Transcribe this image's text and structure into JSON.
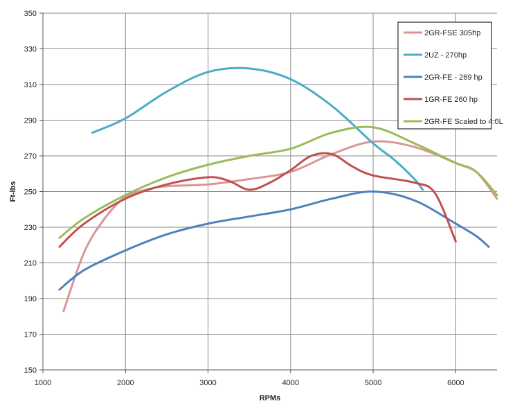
{
  "chart_data": {
    "type": "line",
    "title": "",
    "xlabel": "RPMs",
    "ylabel": "Ft-lbs",
    "xlim": [
      1000,
      6500
    ],
    "ylim": [
      150,
      350
    ],
    "xticks": [
      1000,
      2000,
      3000,
      4000,
      5000,
      6000
    ],
    "yticks": [
      150,
      170,
      190,
      210,
      230,
      250,
      270,
      290,
      310,
      330,
      350
    ],
    "grid": true,
    "legend_position": "top-right",
    "series": [
      {
        "name": "2GR-FSE 305hp",
        "color": "#d99694",
        "points": [
          [
            1250,
            183
          ],
          [
            1500,
            216
          ],
          [
            1750,
            235
          ],
          [
            2000,
            247
          ],
          [
            2250,
            251
          ],
          [
            2500,
            253
          ],
          [
            3000,
            254
          ],
          [
            3500,
            257
          ],
          [
            4000,
            261
          ],
          [
            4500,
            271
          ],
          [
            5000,
            278
          ],
          [
            5500,
            275
          ],
          [
            6000,
            266
          ],
          [
            6250,
            261
          ],
          [
            6500,
            246
          ]
        ]
      },
      {
        "name": "2UZ - 270hp",
        "color": "#4bacc6",
        "points": [
          [
            1600,
            283
          ],
          [
            2000,
            291
          ],
          [
            2500,
            306
          ],
          [
            3000,
            317
          ],
          [
            3500,
            319
          ],
          [
            4000,
            313
          ],
          [
            4500,
            298
          ],
          [
            5000,
            277
          ],
          [
            5250,
            268
          ],
          [
            5500,
            257
          ],
          [
            5600,
            251
          ]
        ]
      },
      {
        "name": "2GR-FE - 269 hp",
        "color": "#4f81bd",
        "points": [
          [
            1200,
            195
          ],
          [
            1500,
            206
          ],
          [
            2000,
            217
          ],
          [
            2500,
            226
          ],
          [
            3000,
            232
          ],
          [
            3500,
            236
          ],
          [
            4000,
            240
          ],
          [
            4500,
            246
          ],
          [
            5000,
            250
          ],
          [
            5500,
            245
          ],
          [
            6000,
            232
          ],
          [
            6250,
            225
          ],
          [
            6400,
            219
          ]
        ]
      },
      {
        "name": "1GR-FE 260 hp",
        "color": "#c0504d",
        "points": [
          [
            1200,
            219
          ],
          [
            1500,
            232
          ],
          [
            2000,
            246
          ],
          [
            2500,
            254
          ],
          [
            3000,
            258
          ],
          [
            3250,
            256
          ],
          [
            3500,
            251
          ],
          [
            3750,
            255
          ],
          [
            4000,
            262
          ],
          [
            4250,
            270
          ],
          [
            4500,
            271
          ],
          [
            4750,
            264
          ],
          [
            5000,
            259
          ],
          [
            5500,
            255
          ],
          [
            5750,
            249
          ],
          [
            6000,
            222
          ]
        ]
      },
      {
        "name": "2GR-FE Scaled to 4.0L",
        "color": "#9bbb59",
        "points": [
          [
            1200,
            224
          ],
          [
            1500,
            235
          ],
          [
            2000,
            248
          ],
          [
            2500,
            258
          ],
          [
            3000,
            265
          ],
          [
            3500,
            270
          ],
          [
            4000,
            274
          ],
          [
            4500,
            283
          ],
          [
            5000,
            286
          ],
          [
            5500,
            277
          ],
          [
            6000,
            266
          ],
          [
            6250,
            261
          ],
          [
            6500,
            248
          ]
        ]
      }
    ]
  }
}
